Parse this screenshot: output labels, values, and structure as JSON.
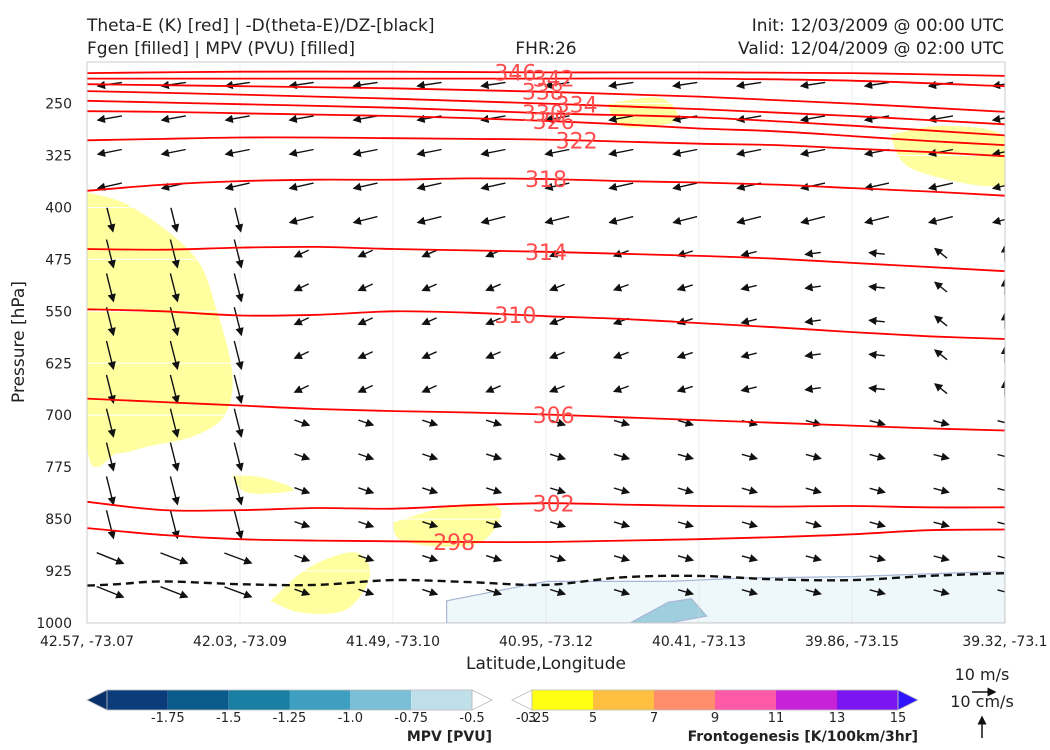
{
  "titles": {
    "left_line1": "Theta-E (K) [red] | -D(theta-E)/DZ-[black]",
    "left_line2": "Fgen [filled] | MPV (PVU) [filled]",
    "center": "FHR:26",
    "right_line1": "Init: 12/03/2009 @ 00:00 UTC",
    "right_line2": "Valid: 12/04/2009 @ 02:00 UTC"
  },
  "axes": {
    "ylabel": "Pressure [hPa]",
    "xlabel": "Latitude,Longitude",
    "y_ticks": [
      "250",
      "325",
      "400",
      "475",
      "550",
      "625",
      "700",
      "775",
      "850",
      "925",
      "1000"
    ],
    "x_ticks": [
      "42.57, -73.07",
      "42.03, -73.09",
      "41.49, -73.10",
      "40.95, -73.12",
      "40.41, -73.13",
      "39.86, -73.15",
      "39.32, -73.1"
    ]
  },
  "wind_key": {
    "line1": "10 m/s",
    "line2": "10 cm/s"
  },
  "colorbars": {
    "mpv": {
      "title": "MPV [PVU]",
      "labels": [
        "-1.75",
        "-1.5",
        "-1.25",
        "-1.0",
        "-0.75",
        "-0.5",
        "-0.25"
      ],
      "colors": [
        "#08306b",
        "#0b3d7a",
        "#0a5a8c",
        "#1a7fa3",
        "#3f9fc0",
        "#7bbfd6",
        "#bfe0ea",
        "#ffffff"
      ]
    },
    "fgen": {
      "title": "Frontogenesis [K/100km/3hr]",
      "labels": [
        "3",
        "5",
        "7",
        "9",
        "11",
        "13",
        "15"
      ],
      "colors": [
        "#ffffff",
        "#ffff14",
        "#ffc040",
        "#ff8c6a",
        "#ff5aa8",
        "#c822d8",
        "#7b16f0",
        "#2e14ff"
      ]
    }
  },
  "chart_data": {
    "type": "cross-section",
    "title": "Theta-E (K) [red] | -D(theta-E)/DZ-[black]",
    "xlabel": "Latitude,Longitude",
    "ylabel": "Pressure [hPa]",
    "ylim": [
      1000,
      190
    ],
    "xlim": [
      0,
      6
    ],
    "y_ticks": [
      250,
      325,
      400,
      475,
      550,
      625,
      700,
      775,
      850,
      925,
      1000
    ],
    "theta_e_contours": [
      {
        "level": 298,
        "label": "298",
        "x": [
          0,
          0.5,
          1,
          1.5,
          2,
          2.5,
          3,
          3.5,
          4,
          4.5,
          5,
          5.5,
          6
        ],
        "p": [
          863,
          873,
          879,
          881,
          882,
          883,
          883,
          881,
          879,
          876,
          872,
          866,
          865
        ]
      },
      {
        "level": 302,
        "label": "302",
        "x": [
          0,
          0.5,
          1,
          1.5,
          2,
          2.5,
          3,
          3.5,
          4,
          4.5,
          5,
          5.5,
          6
        ],
        "p": [
          825,
          837,
          837,
          834,
          835,
          830,
          827,
          829,
          831,
          832,
          831,
          833,
          833
        ]
      },
      {
        "level": 306,
        "label": "306",
        "x": [
          0,
          0.5,
          1,
          1.5,
          2,
          2.5,
          3,
          3.5,
          4,
          4.5,
          5,
          5.5,
          6
        ],
        "p": [
          676,
          681,
          686,
          691,
          694,
          696,
          699,
          703,
          707,
          711,
          715,
          719,
          722
        ]
      },
      {
        "level": 310,
        "label": "310",
        "x": [
          0,
          0.5,
          1,
          1.5,
          2,
          2.5,
          3,
          3.5,
          4,
          4.5,
          5,
          5.5,
          6
        ],
        "p": [
          547,
          550,
          556,
          555,
          550,
          552,
          557,
          561,
          567,
          573,
          580,
          586,
          590
        ]
      },
      {
        "level": 314,
        "label": "314",
        "x": [
          0,
          0.5,
          1,
          1.5,
          2,
          2.5,
          3,
          3.5,
          4,
          4.5,
          5,
          5.5,
          6
        ],
        "p": [
          460,
          461,
          458,
          457,
          460,
          462,
          464,
          467,
          470,
          474,
          480,
          486,
          492
        ]
      },
      {
        "level": 318,
        "label": "318",
        "x": [
          0,
          0.5,
          1,
          1.5,
          2,
          2.5,
          3,
          3.5,
          4,
          4.5,
          5,
          5.5,
          6
        ],
        "p": [
          376,
          367,
          362,
          360,
          360,
          358,
          359,
          362,
          364,
          367,
          372,
          377,
          383
        ]
      },
      {
        "level": 322,
        "label": "322",
        "x": [
          0,
          0.5,
          1,
          1.5,
          2,
          2.5,
          3,
          3.5,
          4,
          4.5,
          5,
          5.5,
          6
        ],
        "p": [
          303,
          301,
          299,
          299,
          300,
          301,
          302,
          305,
          308,
          310,
          315,
          320,
          326
        ]
      },
      {
        "level": 326,
        "label": "326",
        "x": [
          0,
          0.5,
          1,
          1.5,
          2,
          2.5,
          3,
          3.5,
          4,
          4.5,
          5,
          5.5,
          6
        ],
        "p": [
          261,
          262,
          264,
          266,
          268,
          271,
          275,
          280,
          286,
          290,
          297,
          304,
          310
        ]
      },
      {
        "level": 330,
        "label": "330",
        "x": [
          0,
          1,
          2,
          3,
          4,
          5,
          6
        ],
        "p": [
          246,
          251,
          256,
          264,
          270,
          282,
          296
        ]
      },
      {
        "level": 334,
        "label": "334",
        "x": [
          0,
          1,
          2,
          3,
          4,
          5,
          6
        ],
        "p": [
          232,
          237,
          243,
          250,
          258,
          268,
          280
        ]
      },
      {
        "level": 338,
        "label": "338",
        "x": [
          0,
          1,
          2,
          3,
          4,
          5,
          6
        ],
        "p": [
          222,
          225,
          228,
          233,
          240,
          250,
          262
        ]
      },
      {
        "level": 342,
        "label": "342",
        "x": [
          0,
          1,
          2,
          3,
          4,
          5,
          6
        ],
        "p": [
          214,
          214,
          214,
          214,
          214,
          217,
          225
        ]
      },
      {
        "level": 346,
        "label": "346",
        "x": [
          0,
          1,
          2,
          3,
          4,
          5,
          6
        ],
        "p": [
          206,
          204,
          204,
          205,
          205,
          206,
          210
        ]
      }
    ],
    "dthetae_dz_zero_line": {
      "style": "dashed",
      "x": [
        0,
        0.2,
        0.5,
        1,
        1.5,
        2,
        2.5,
        3,
        3.5,
        4,
        4.5,
        5,
        5.5,
        6
      ],
      "p": [
        946,
        944,
        940,
        944,
        945,
        938,
        941,
        945,
        934,
        932,
        937,
        938,
        932,
        928
      ]
    },
    "fgen_regions": [
      {
        "levels": "3-5",
        "x": [
          0,
          0.3,
          0.7,
          0.85,
          0.95,
          0.9,
          0.7,
          0.4,
          0.2,
          0
        ],
        "p": [
          378,
          400,
          470,
          550,
          640,
          700,
          730,
          745,
          755,
          745
        ]
      },
      {
        "levels": "3-5",
        "x": [
          0.95,
          1.15,
          1.35,
          1.05
        ],
        "p": [
          787,
          790,
          808,
          812
        ]
      },
      {
        "levels": "3-5",
        "x": [
          1.2,
          1.45,
          1.75,
          1.85,
          1.7,
          1.4
        ],
        "p": [
          968,
          920,
          898,
          930,
          980,
          985
        ]
      },
      {
        "levels": "3-5",
        "x": [
          2,
          2.4,
          2.7,
          2.6,
          2.35,
          2.05
        ],
        "p": [
          855,
          830,
          835,
          880,
          890,
          880
        ]
      },
      {
        "levels": "3-5",
        "x": [
          3.4,
          3.75,
          3.85,
          3.5
        ],
        "p": [
          250,
          242,
          275,
          283
        ]
      },
      {
        "levels": "3-5",
        "x": [
          5.25,
          5.6,
          6,
          6,
          5.4
        ],
        "p": [
          295,
          282,
          298,
          368,
          345
        ]
      }
    ],
    "mpv_regions": [
      {
        "levels": "-0.25-0",
        "x": [
          2.35,
          3,
          3.8,
          4.3,
          5,
          6,
          6,
          2.35
        ],
        "p": [
          968,
          940,
          940,
          935,
          933,
          925,
          1000,
          1000
        ]
      },
      {
        "levels": "-0.5 to -1.0",
        "x": [
          3.55,
          3.8,
          3.95,
          4.05,
          3.8
        ],
        "p": [
          1000,
          970,
          965,
          990,
          1000
        ]
      }
    ],
    "wind_key_units": {
      "horizontal": "10 m/s",
      "vertical": "10 cm/s"
    }
  }
}
